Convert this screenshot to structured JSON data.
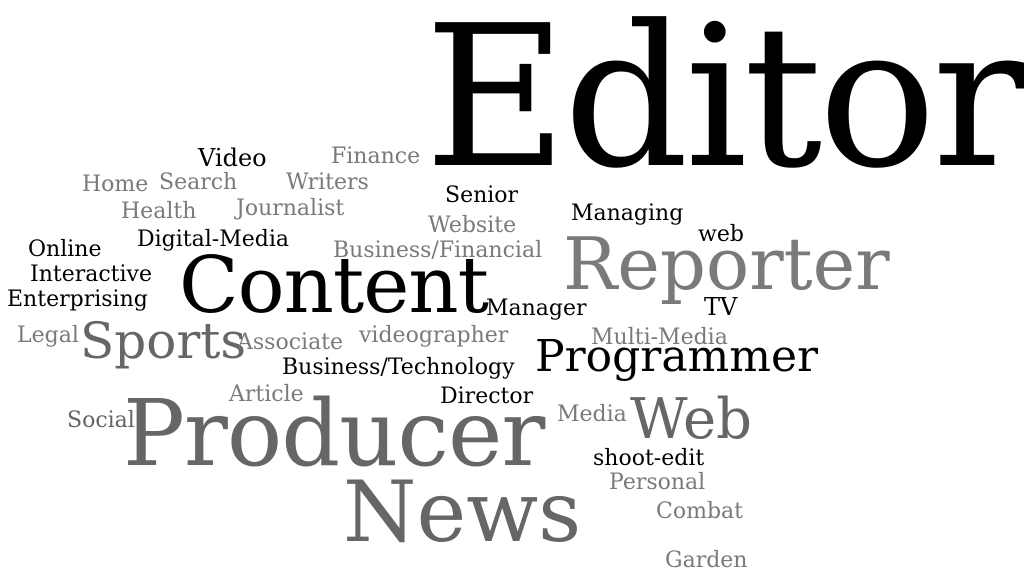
{
  "words": {
    "editor": "Editor",
    "reporter": "Reporter",
    "content": "Content",
    "producer": "Producer",
    "news": "News",
    "programmer": "Programmer",
    "web_big": "Web",
    "sports": "Sports",
    "video": "Video",
    "finance": "Finance",
    "home": "Home",
    "search": "Search",
    "writers": "Writers",
    "senior": "Senior",
    "health": "Health",
    "journalist": "Journalist",
    "website": "Website",
    "managing": "Managing",
    "web_small": "web",
    "digital_media": "Digital-Media",
    "online": "Online",
    "business_financial": "Business/Financial",
    "interactive": "Interactive",
    "enterprising": "Enterprising",
    "manager": "Manager",
    "tv": "TV",
    "legal": "Legal",
    "associate": "Associate",
    "videographer": "videographer",
    "multi_media": "Multi-Media",
    "business_technology": "Business/Technology",
    "article": "Article",
    "director": "Director",
    "social": "Social",
    "media": "Media",
    "shoot_edit": "shoot-edit",
    "personal": "Personal",
    "combat": "Combat",
    "garden": "Garden"
  },
  "colors": {
    "black": "#000000",
    "gray": "#7a7a7a"
  }
}
